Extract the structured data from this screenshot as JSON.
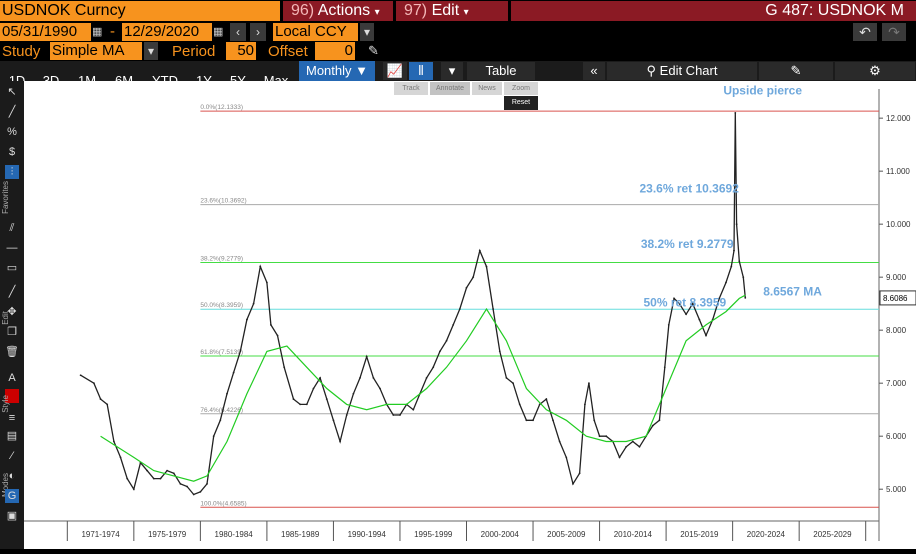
{
  "header": {
    "ticker": "USDNOK Curncy",
    "actions_num": "96)",
    "actions_label": "Actions",
    "edit_num": "97)",
    "edit_label": "Edit",
    "page_code": "G 487: USDNOK M"
  },
  "dates": {
    "start": "05/31/1990",
    "separator": "-",
    "end": "12/29/2020",
    "currency": "Local CCY"
  },
  "study": {
    "label": "Study",
    "value": "Simple MA",
    "period_label": "Period",
    "period": "50",
    "offset_label": "Offset",
    "offset": "0"
  },
  "toolbar": {
    "periods": [
      "1D",
      "3D",
      "1M",
      "6M",
      "YTD",
      "1Y",
      "5Y",
      "Max"
    ],
    "frequency": "Monthly",
    "table_label": "Table",
    "edit_chart_label": "Edit Chart"
  },
  "zoom_tools": {
    "track": "Track",
    "annotate": "Annotate",
    "news": "News",
    "zoom": "Zoom",
    "reset": "Reset"
  },
  "leftbar": {
    "favorites": "Favorites",
    "edit": "Edit",
    "style": "Style",
    "modes": "Modes"
  },
  "chart_data": {
    "type": "line",
    "x_labels": [
      "1971-1974",
      "1975-1979",
      "1980-1984",
      "1985-1989",
      "1990-1994",
      "1995-1999",
      "2000-2004",
      "2005-2009",
      "2010-2014",
      "2015-2019",
      "2020-2024",
      "2025-2029"
    ],
    "xlim": [
      1969,
      2031
    ],
    "ylim": [
      4.4,
      12.55
    ],
    "y_ticks": [
      5.0,
      6.0,
      7.0,
      8.0,
      9.0,
      10.0,
      11.0,
      12.0
    ],
    "y_tick_labels": [
      "5.000",
      "6.000",
      "7.000",
      "8.000",
      "9.000",
      "10.000",
      "11.000",
      "12.000"
    ],
    "last_price_label": "8.6086",
    "grid": false,
    "series": [
      {
        "color": "#222222",
        "x": [
          1971.0,
          1972.0,
          1972.5,
          1973.0,
          1973.5,
          1974.0,
          1974.5,
          1975.0,
          1975.5,
          1976.0,
          1976.5,
          1977.0,
          1977.5,
          1978.0,
          1978.5,
          1979.0,
          1979.5,
          1980.0,
          1980.5,
          1981.0,
          1981.5,
          1982.0,
          1982.5,
          1983.0,
          1983.5,
          1984.0,
          1984.5,
          1985.0,
          1985.3,
          1985.8,
          1986.3,
          1987.0,
          1987.5,
          1988.0,
          1988.5,
          1989.0,
          1989.5,
          1990.0,
          1990.5,
          1991.0,
          1991.5,
          1992.0,
          1992.5,
          1993.0,
          1993.5,
          1994.0,
          1994.5,
          1995.0,
          1995.5,
          1996.0,
          1996.5,
          1997.0,
          1997.5,
          1998.0,
          1998.5,
          1999.0,
          1999.5,
          2000.0,
          2000.5,
          2001.0,
          2001.5,
          2002.0,
          2002.5,
          2003.0,
          2003.5,
          2004.0,
          2004.5,
          2005.0,
          2005.5,
          2006.0,
          2006.5,
          2007.0,
          2007.5,
          2008.0,
          2008.5,
          2008.9,
          2009.2,
          2009.6,
          2010.0,
          2010.5,
          2011.0,
          2011.5,
          2012.0,
          2012.5,
          2013.0,
          2013.5,
          2014.0,
          2014.5,
          2014.9,
          2015.2,
          2015.6,
          2016.0,
          2016.5,
          2017.0,
          2017.5,
          2018.0,
          2018.5,
          2019.0,
          2019.5,
          2019.9,
          2020.1,
          2020.2,
          2020.3,
          2020.5,
          2020.8,
          2020.95
        ],
        "values": [
          7.15,
          7.0,
          6.7,
          6.6,
          5.9,
          5.6,
          5.2,
          5.0,
          5.5,
          5.35,
          5.2,
          5.2,
          5.35,
          5.3,
          5.1,
          5.05,
          4.9,
          4.95,
          5.1,
          6.0,
          6.3,
          6.8,
          7.2,
          7.6,
          8.2,
          8.5,
          9.2,
          8.9,
          8.1,
          7.9,
          7.3,
          6.7,
          6.6,
          6.6,
          6.9,
          7.1,
          6.7,
          6.3,
          5.9,
          6.4,
          6.8,
          7.1,
          7.5,
          7.1,
          6.9,
          6.6,
          6.4,
          6.4,
          6.6,
          6.5,
          6.8,
          7.1,
          7.3,
          7.6,
          7.8,
          8.1,
          8.4,
          8.8,
          9.0,
          9.5,
          9.2,
          8.4,
          7.6,
          7.1,
          7.0,
          6.6,
          6.3,
          6.3,
          6.6,
          6.7,
          6.3,
          5.9,
          5.6,
          5.1,
          5.3,
          6.6,
          7.0,
          6.3,
          6.0,
          6.0,
          5.9,
          5.6,
          5.8,
          5.9,
          5.8,
          6.0,
          6.2,
          6.3,
          7.3,
          8.1,
          8.6,
          8.5,
          8.3,
          8.5,
          8.2,
          7.9,
          8.2,
          8.6,
          8.9,
          9.2,
          9.5,
          12.1,
          10.0,
          9.3,
          9.0,
          8.61
        ]
      },
      {
        "color": "#22cc22",
        "x": [
          1972.5,
          1975.0,
          1976.5,
          1978.0,
          1979.5,
          1980.5,
          1982.0,
          1983.5,
          1985.0,
          1986.5,
          1988.0,
          1989.5,
          1991.0,
          1992.5,
          1994.0,
          1995.5,
          1997.0,
          1998.5,
          2000.0,
          2001.5,
          2003.0,
          2004.5,
          2006.0,
          2007.5,
          2009.0,
          2010.5,
          2012.0,
          2013.5,
          2015.0,
          2016.5,
          2018.0,
          2019.5,
          2020.5,
          2020.95
        ],
        "values": [
          6.0,
          5.6,
          5.35,
          5.25,
          5.15,
          5.25,
          5.9,
          6.8,
          7.6,
          7.7,
          7.3,
          6.9,
          6.6,
          6.5,
          6.6,
          6.6,
          6.9,
          7.3,
          7.8,
          8.4,
          7.8,
          6.9,
          6.5,
          6.3,
          6.0,
          5.9,
          5.9,
          6.0,
          6.9,
          7.8,
          8.1,
          8.35,
          8.6,
          8.66
        ]
      }
    ],
    "fib_levels": [
      {
        "label": "0.0%(12.1333)",
        "value": 12.1333,
        "color": "#d9534f"
      },
      {
        "label": "23.6%(10.3692)",
        "value": 10.3692,
        "color": "#aaaaaa"
      },
      {
        "label": "38.2%(9.2779)",
        "value": 9.2779,
        "color": "#44dd44"
      },
      {
        "label": "50.0%(8.3959)",
        "value": 8.3959,
        "color": "#66dddd"
      },
      {
        "label": "61.8%(7.5139)",
        "value": 7.5139,
        "color": "#44dd44"
      },
      {
        "label": "76.4%(6.4226)",
        "value": 6.4226,
        "color": "#aaaaaa"
      },
      {
        "label": "100.0%(4.6585)",
        "value": 4.6585,
        "color": "#d9534f"
      }
    ],
    "annotations": [
      {
        "text": "Upside pierce",
        "x": 2019.3,
        "y": 12.45
      },
      {
        "text": "23.6% ret 10.3692",
        "x": 2013.0,
        "y": 10.6
      },
      {
        "text": "38.2% ret 9.2779",
        "x": 2013.1,
        "y": 9.55
      },
      {
        "text": "8.6567 MA",
        "x": 2022.3,
        "y": 8.65
      },
      {
        "text": "50% ret 8.3959",
        "x": 2013.3,
        "y": 8.45
      }
    ]
  }
}
